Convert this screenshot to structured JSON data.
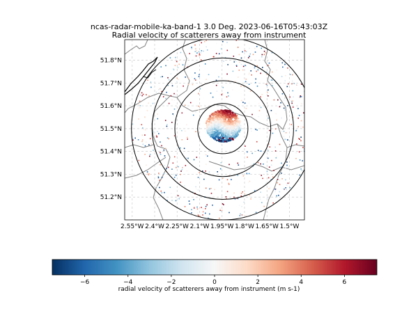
{
  "title_line1": "ncas-radar-mobile-ka-band-1 3.0 Deg. 2023-06-16T05:43:03Z",
  "title_line2": "Radial velocity of scatterers away from instrument",
  "map": {
    "lon_range": [
      -2.6,
      -1.4
    ],
    "lat_range": [
      51.1,
      51.89
    ],
    "lon_ticks": [
      -2.55,
      -2.4,
      -2.25,
      -2.1,
      -1.95,
      -1.8,
      -1.65,
      -1.5
    ],
    "lon_tick_labels": [
      "2.55°W",
      "2.4°W",
      "2.25°W",
      "2.1°W",
      "1.95°W",
      "1.8°W",
      "1.65°W",
      "1.5°W"
    ],
    "lat_ticks": [
      51.2,
      51.3,
      51.4,
      51.5,
      51.6,
      51.7,
      51.8
    ],
    "lat_tick_labels": [
      "51.2°N",
      "51.3°N",
      "51.4°N",
      "51.5°N",
      "51.6°N",
      "51.7°N",
      "51.8°N"
    ],
    "gridlines": true,
    "radar_center": {
      "lon": -1.945,
      "lat": 51.5
    },
    "range_rings_lat_deg": [
      0.11,
      0.21,
      0.31,
      0.4
    ]
  },
  "colorbar": {
    "cmap": "RdBu_r",
    "range": [
      -7.5,
      7.5
    ],
    "ticks": [
      -6,
      -4,
      -2,
      0,
      2,
      4,
      6
    ],
    "tick_labels": [
      "−6",
      "−4",
      "−2",
      "0",
      "2",
      "4",
      "6"
    ],
    "label": "radial velocity of scatterers away from instrument (m s-1)"
  },
  "colors": {
    "stops": [
      "#053061",
      "#2166ac",
      "#4393c3",
      "#92c5de",
      "#d1e5f0",
      "#f7f7f7",
      "#fddbc7",
      "#f4a582",
      "#d6604d",
      "#b2182b",
      "#67001f"
    ],
    "coastline": "#000000",
    "boundary": "#808080",
    "grid": "#cccccc"
  }
}
